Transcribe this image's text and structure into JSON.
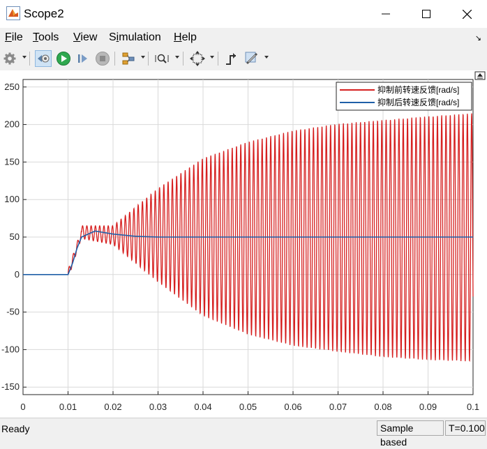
{
  "window": {
    "title": "Scope2"
  },
  "menu": {
    "items": [
      "File",
      "Tools",
      "View",
      "Simulation",
      "Help"
    ],
    "mnemonic_index": [
      0,
      0,
      0,
      1,
      0
    ]
  },
  "toolbar": {
    "buttons": [
      "gear-icon",
      "highlight-block-icon",
      "run-icon",
      "step-forward-icon",
      "stop-icon",
      "layout-icon",
      "zoom-icon",
      "autoscale-icon",
      "trigger-icon",
      "measure-icon"
    ]
  },
  "status": {
    "ready": "Ready",
    "mode": "Sample based",
    "time": "T=0.100"
  },
  "chart_data": {
    "type": "line",
    "title": "",
    "xlabel": "",
    "ylabel": "",
    "xlim": [
      0,
      0.1
    ],
    "ylim": [
      -160,
      260
    ],
    "xticks": [
      0,
      0.01,
      0.02,
      0.03,
      0.04,
      0.05,
      0.06,
      0.07,
      0.08,
      0.09,
      0.1
    ],
    "xtick_labels": [
      "0",
      "0.01",
      "0.02",
      "0.03",
      "0.04",
      "0.05",
      "0.06",
      "0.07",
      "0.08",
      "0.09",
      "0.1"
    ],
    "yticks": [
      -150,
      -100,
      -50,
      0,
      50,
      100,
      150,
      200,
      250
    ],
    "grid": true,
    "legend_position": "top-right",
    "series": [
      {
        "name": "抑制前转速反馈[rad/s]",
        "color": "#d62020",
        "description_points": [
          {
            "t": 0,
            "value": 0
          },
          {
            "t": 0.01,
            "value": 0
          },
          {
            "t": 0.013,
            "value": 55
          },
          {
            "t": 0.02,
            "value": 50
          }
        ],
        "envelope": {
          "t": [
            0.013,
            0.02,
            0.03,
            0.04,
            0.05,
            0.06,
            0.07,
            0.08,
            0.09,
            0.1
          ],
          "max": [
            65,
            65,
            115,
            155,
            177,
            192,
            201,
            206,
            211,
            215
          ],
          "min": [
            48,
            40,
            -10,
            -55,
            -80,
            -95,
            -103,
            -110,
            -114,
            -116
          ]
        },
        "oscillation_period": 0.00095
      },
      {
        "name": "抑制后转速反馈[rad/s]",
        "color": "#1f5fa8",
        "points": [
          {
            "t": 0,
            "value": 0
          },
          {
            "t": 0.01,
            "value": 0
          },
          {
            "t": 0.011,
            "value": 15
          },
          {
            "t": 0.012,
            "value": 35
          },
          {
            "t": 0.013,
            "value": 50
          },
          {
            "t": 0.016,
            "value": 58
          },
          {
            "t": 0.02,
            "value": 54
          },
          {
            "t": 0.025,
            "value": 51
          },
          {
            "t": 0.03,
            "value": 50
          },
          {
            "t": 0.1,
            "value": 50
          }
        ]
      }
    ]
  }
}
